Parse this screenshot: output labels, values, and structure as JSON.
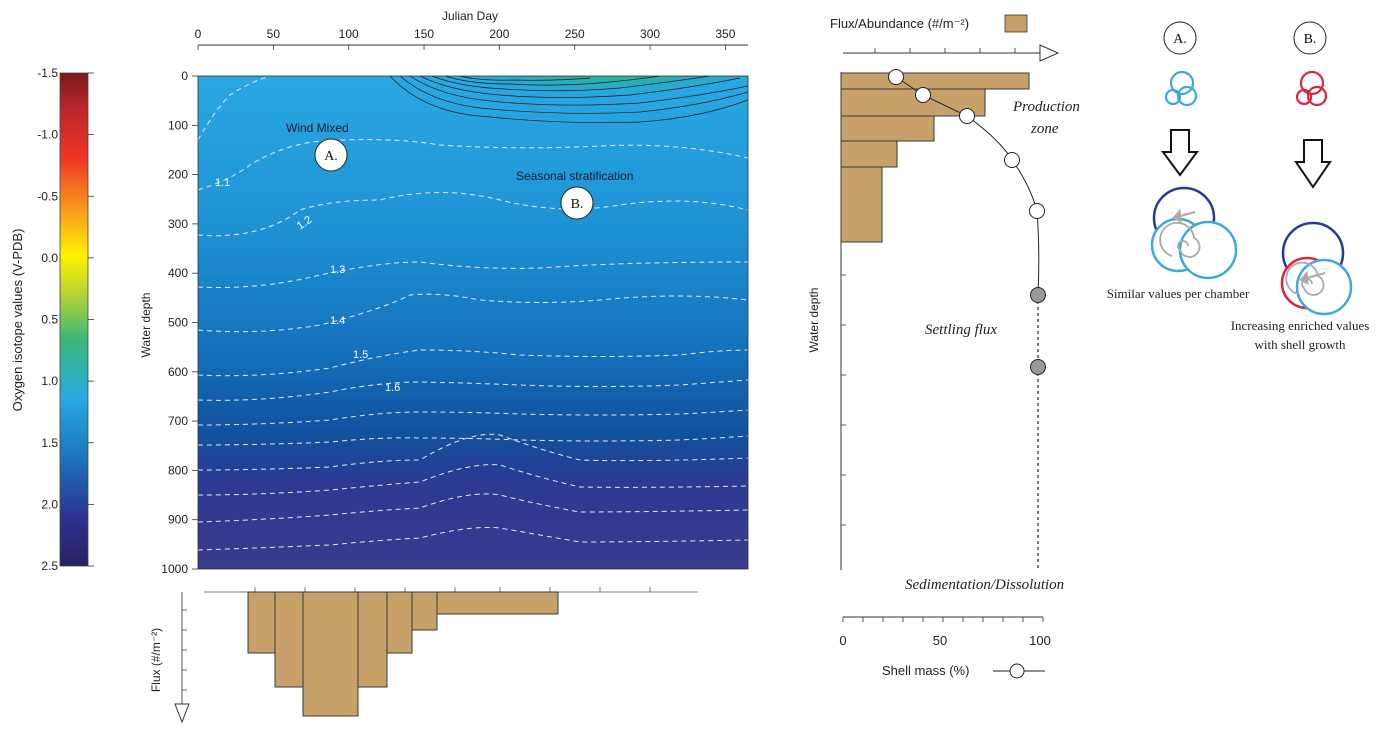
{
  "colorbar": {
    "label": "Oxygen isotope values (V-PDB)",
    "ticks": [
      "-1.5",
      "-1.0",
      "-0.5",
      "0.0",
      "0.5",
      "1.0",
      "1.5",
      "2.0",
      "2.5"
    ],
    "colors": [
      "#7a1a1a",
      "#c0272d",
      "#ee3424",
      "#f7941d",
      "#fff200",
      "#b5d334",
      "#3cb878",
      "#27aae1",
      "#1c75bc",
      "#2e3192",
      "#262262"
    ]
  },
  "main_plot": {
    "x_axis": {
      "label": "Julian Day",
      "ticks": [
        "0",
        "50",
        "100",
        "150",
        "200",
        "250",
        "300",
        "350"
      ],
      "range": [
        0,
        365
      ]
    },
    "y_axis": {
      "label": "Water depth",
      "ticks": [
        "0",
        "100",
        "200",
        "300",
        "400",
        "500",
        "600",
        "700",
        "800",
        "900",
        "1000"
      ],
      "range": [
        0,
        1000
      ]
    },
    "annotations": {
      "wind_mixed": "Wind Mixed",
      "seasonal": "Seasonal stratification"
    },
    "badges": {
      "a": "A.",
      "b": "B."
    },
    "contour_labels": [
      "1.1",
      "1.2",
      "1.3",
      "1.4",
      "1.5",
      "1.6"
    ],
    "flux_axis_label": "Flux (#/m⁻²)"
  },
  "right_plot": {
    "top_axis_label": "Flux/Abundance (#/m⁻²)",
    "y_axis_label": "Water depth",
    "bottom_axis": {
      "label": "Shell mass (%)",
      "ticks": [
        "0",
        "50",
        "100"
      ]
    },
    "labels": {
      "production": "Production",
      "zone": "zone",
      "settling": "Settling flux",
      "sedimentation": "Sedimentation/Dissolution"
    }
  },
  "schematic": {
    "a_label": "A.",
    "b_label": "B.",
    "a_caption": "Similar values per chamber",
    "b_caption_line1": "Increasing enriched values",
    "b_caption_line2": "with shell growth",
    "colors": {
      "light_blue": "#3fa9d5",
      "red": "#d7263d",
      "navy": "#2b3990",
      "gray": "#aaaaaa"
    }
  }
}
